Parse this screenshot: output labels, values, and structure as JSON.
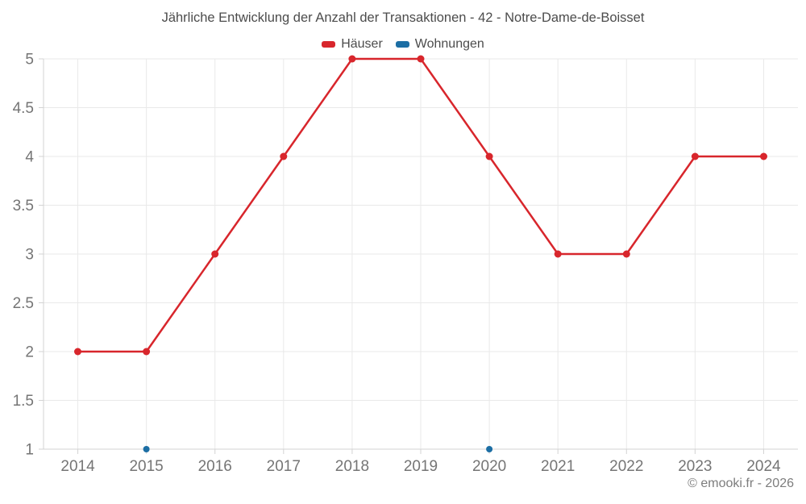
{
  "attribution": "© emooki.fr - 2026",
  "chart_data": {
    "type": "line",
    "title": "Jährliche Entwicklung der Anzahl der Transaktionen - 42 - Notre-Dame-de-Boisset",
    "categories": [
      "2014",
      "2015",
      "2016",
      "2017",
      "2018",
      "2019",
      "2020",
      "2021",
      "2022",
      "2023",
      "2024"
    ],
    "series": [
      {
        "name": "Häuser",
        "color": "#d8262c",
        "marker_radius": 4.5,
        "values": [
          2,
          2,
          3,
          4,
          5,
          5,
          4,
          3,
          3,
          4,
          4
        ]
      },
      {
        "name": "Wohnungen",
        "color": "#1c6ea4",
        "marker_radius": 4,
        "values": [
          null,
          1,
          null,
          null,
          null,
          null,
          1,
          null,
          null,
          null,
          null
        ]
      }
    ],
    "ylim": [
      1,
      5
    ],
    "yticks": [
      1,
      1.5,
      2,
      2.5,
      3,
      3.5,
      4,
      4.5,
      5
    ],
    "grid": true,
    "legend_position": "top",
    "xlabel": "",
    "ylabel": ""
  },
  "colors": {
    "background": "#ffffff",
    "grid": "#e9e9e9",
    "axis": "#d3d3d3",
    "tick_label": "#757575",
    "title_text": "#4c4c4c",
    "legend_text": "#4c4c4c",
    "attribution_text": "#7d7d7d"
  }
}
